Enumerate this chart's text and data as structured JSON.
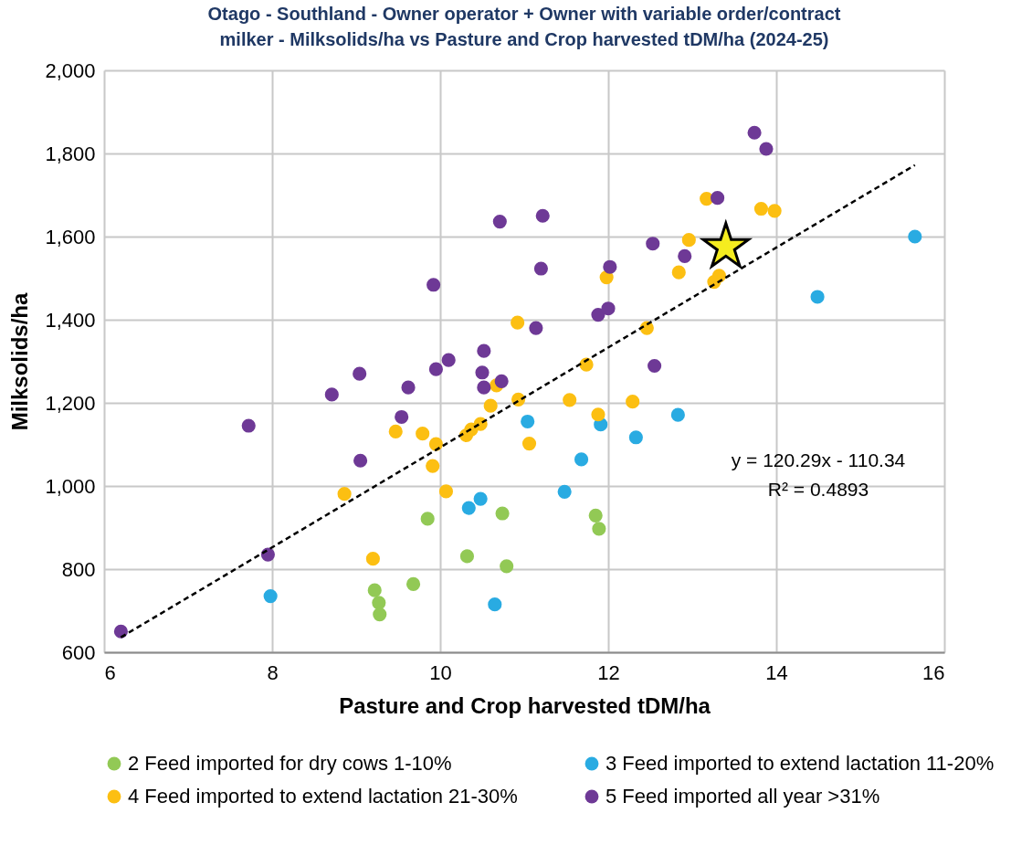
{
  "chart_data": {
    "type": "scatter",
    "title": "Otago - Southland - Owner operator + Owner with variable order/contract milker - Milksolids/ha vs Pasture and Crop harvested tDM/ha (2024-25)",
    "xlabel": "Pasture and Crop harvested tDM/ha",
    "ylabel": "Milksolids/ha",
    "xlim": [
      6,
      16
    ],
    "xticks": [
      6,
      8,
      10,
      12,
      14,
      16
    ],
    "ylim": [
      600,
      2000
    ],
    "yticks": [
      600,
      800,
      {
        "value": 1000,
        "label": "1,000"
      },
      {
        "value": 1200,
        "label": "1,200"
      },
      {
        "value": 1400,
        "label": "1,400"
      },
      {
        "value": 1600,
        "label": "1,600"
      },
      {
        "value": 1800,
        "label": "1,800"
      },
      {
        "value": 2000,
        "label": "2,000"
      }
    ],
    "grid": true,
    "legend": "bottom",
    "marker": "circle",
    "annotations": [
      "y = 120.29x - 110.34",
      "R² = 0.4893"
    ],
    "series": [
      {
        "name": "2 Feed imported for dry cows 1-10%",
        "color": "#92c955",
        "x": [
          9.85,
          9.22,
          9.27,
          9.28,
          9.68,
          10.32,
          10.74,
          10.79,
          11.85,
          11.89
        ],
        "values": [
          921,
          749,
          719,
          691,
          764,
          831,
          934,
          807,
          929,
          897
        ]
      },
      {
        "name": "3 Feed imported to extend lactation 11-20%",
        "color": "#29abe2",
        "x": [
          7.98,
          10.34,
          10.48,
          10.65,
          11.04,
          15.65,
          14.49,
          11.91,
          12.83,
          12.33,
          11.68,
          11.48
        ],
        "values": [
          735,
          947,
          969,
          715,
          1155,
          1600,
          1455,
          1148,
          1171,
          1117,
          1064,
          986
        ]
      },
      {
        "name": "4 Feed imported to extend lactation 21-30%",
        "color": "#fcbf12",
        "x": [
          9.47,
          9.79,
          9.95,
          9.91,
          8.86,
          10.07,
          9.2,
          11.06,
          10.31,
          10.37,
          10.48,
          10.6,
          10.93,
          10.67,
          10.92,
          13.17,
          13.82,
          13.98,
          12.96,
          12.84,
          13.32,
          13.26,
          11.98,
          12.46,
          11.74,
          11.54,
          12.29,
          11.88
        ],
        "values": [
          1131,
          1126,
          1101,
          1048,
          981,
          987,
          825,
          1102,
          1122,
          1136,
          1149,
          1193,
          1208,
          1242,
          1393,
          1691,
          1667,
          1662,
          1592,
          1514,
          1506,
          1491,
          1502,
          1380,
          1292,
          1207,
          1203,
          1172
        ]
      },
      {
        "name": "5 Feed imported all year >31%",
        "color": "#6e3996",
        "x": [
          6.2,
          7.95,
          7.72,
          8.71,
          9.04,
          9.62,
          9.54,
          9.05,
          10.52,
          10.73,
          10.5,
          10.71,
          9.92,
          10.52,
          10.1,
          9.95,
          13.74,
          13.88,
          13.3,
          11.22,
          11.2,
          12.53,
          12.91,
          12.02,
          11.88,
          12.0,
          11.14,
          12.55
        ],
        "values": [
          650,
          835,
          1145,
          1220,
          1270,
          1237,
          1166,
          1061,
          1237,
          1252,
          1273,
          1636,
          1484,
          1325,
          1303,
          1281,
          1850,
          1811,
          1693,
          1650,
          1523,
          1583,
          1553,
          1527,
          1412,
          1427,
          1380,
          1289
        ]
      },
      {
        "type": "line",
        "color": "#000000",
        "line_style": "dashed",
        "marker": "none",
        "x": [
          6.2,
          15.65
        ],
        "values": [
          636,
          1772
        ]
      },
      {
        "color": "#f5ec1f",
        "marker": "star",
        "x": [
          13.4
        ],
        "values": [
          1575
        ]
      }
    ]
  }
}
